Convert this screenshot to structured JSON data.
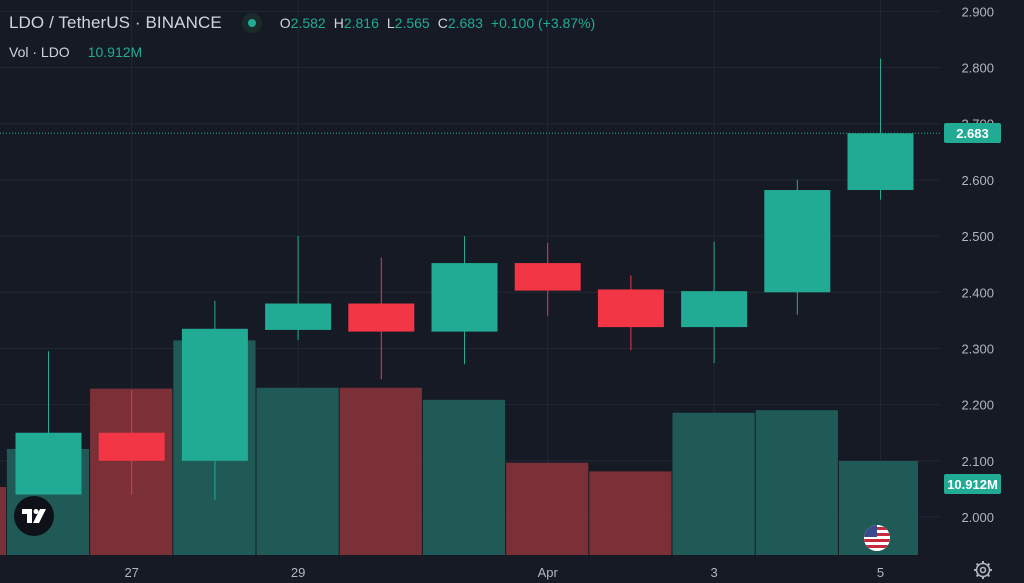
{
  "header": {
    "symbol": "LDO / TetherUS · BINANCE",
    "ohlc": [
      {
        "label": "O",
        "value": "2.582"
      },
      {
        "label": "H",
        "value": "2.816"
      },
      {
        "label": "L",
        "value": "2.565"
      },
      {
        "label": "C",
        "value": "2.683"
      }
    ],
    "change": "+0.100 (+3.87%)"
  },
  "volume_legend": {
    "label": "Vol · LDO",
    "value": "10.912M"
  },
  "price_tags": {
    "last_price": "2.683",
    "volume": "10.912M"
  },
  "colors": {
    "up": "#22ab94",
    "down": "#f23645",
    "vol_up": "#1f5a57",
    "vol_down": "#7a3036",
    "background": "#161a25",
    "grid": "#232733"
  },
  "icons": [
    "tradingview-logo-icon",
    "us-flag-icon",
    "settings-gear-icon",
    "status-dot-icon"
  ],
  "chart_data": {
    "type": "candlestick",
    "price_axis": {
      "ticks": [
        "2.000",
        "2.100",
        "2.200",
        "2.300",
        "2.400",
        "2.500",
        "2.600",
        "2.700",
        "2.800",
        "2.900"
      ],
      "range": [
        1.935,
        2.915
      ]
    },
    "time_axis": {
      "ticks": [
        "27",
        "29",
        "Apr",
        "3",
        "5"
      ]
    },
    "candles": [
      {
        "date": "Mar 26",
        "open": 2.04,
        "high": 2.295,
        "low": 2.04,
        "close": 2.15,
        "volume": 12.3
      },
      {
        "date": "Mar 27",
        "open": 2.15,
        "high": 2.225,
        "low": 2.04,
        "close": 2.1,
        "volume": 19.3
      },
      {
        "date": "Mar 28",
        "open": 2.1,
        "high": 2.385,
        "low": 2.03,
        "close": 2.335,
        "volume": 24.9
      },
      {
        "date": "Mar 29",
        "open": 2.333,
        "high": 2.5,
        "low": 2.315,
        "close": 2.38,
        "volume": 19.4
      },
      {
        "date": "Mar 30",
        "open": 2.38,
        "high": 2.462,
        "low": 2.245,
        "close": 2.33,
        "volume": 19.4
      },
      {
        "date": "Mar 31",
        "open": 2.33,
        "high": 2.5,
        "low": 2.272,
        "close": 2.452,
        "volume": 18.0
      },
      {
        "date": "Apr 1",
        "open": 2.452,
        "high": 2.488,
        "low": 2.358,
        "close": 2.403,
        "volume": 10.7
      },
      {
        "date": "Apr 2",
        "open": 2.405,
        "high": 2.43,
        "low": 2.297,
        "close": 2.338,
        "volume": 9.7
      },
      {
        "date": "Apr 3",
        "open": 2.338,
        "high": 2.49,
        "low": 2.274,
        "close": 2.402,
        "volume": 16.5
      },
      {
        "date": "Apr 4",
        "open": 2.4,
        "high": 2.6,
        "low": 2.36,
        "close": 2.582,
        "volume": 16.8
      },
      {
        "date": "Apr 5",
        "open": 2.582,
        "high": 2.816,
        "low": 2.565,
        "close": 2.683,
        "volume": 10.912
      }
    ],
    "volume_max": 29.0
  }
}
